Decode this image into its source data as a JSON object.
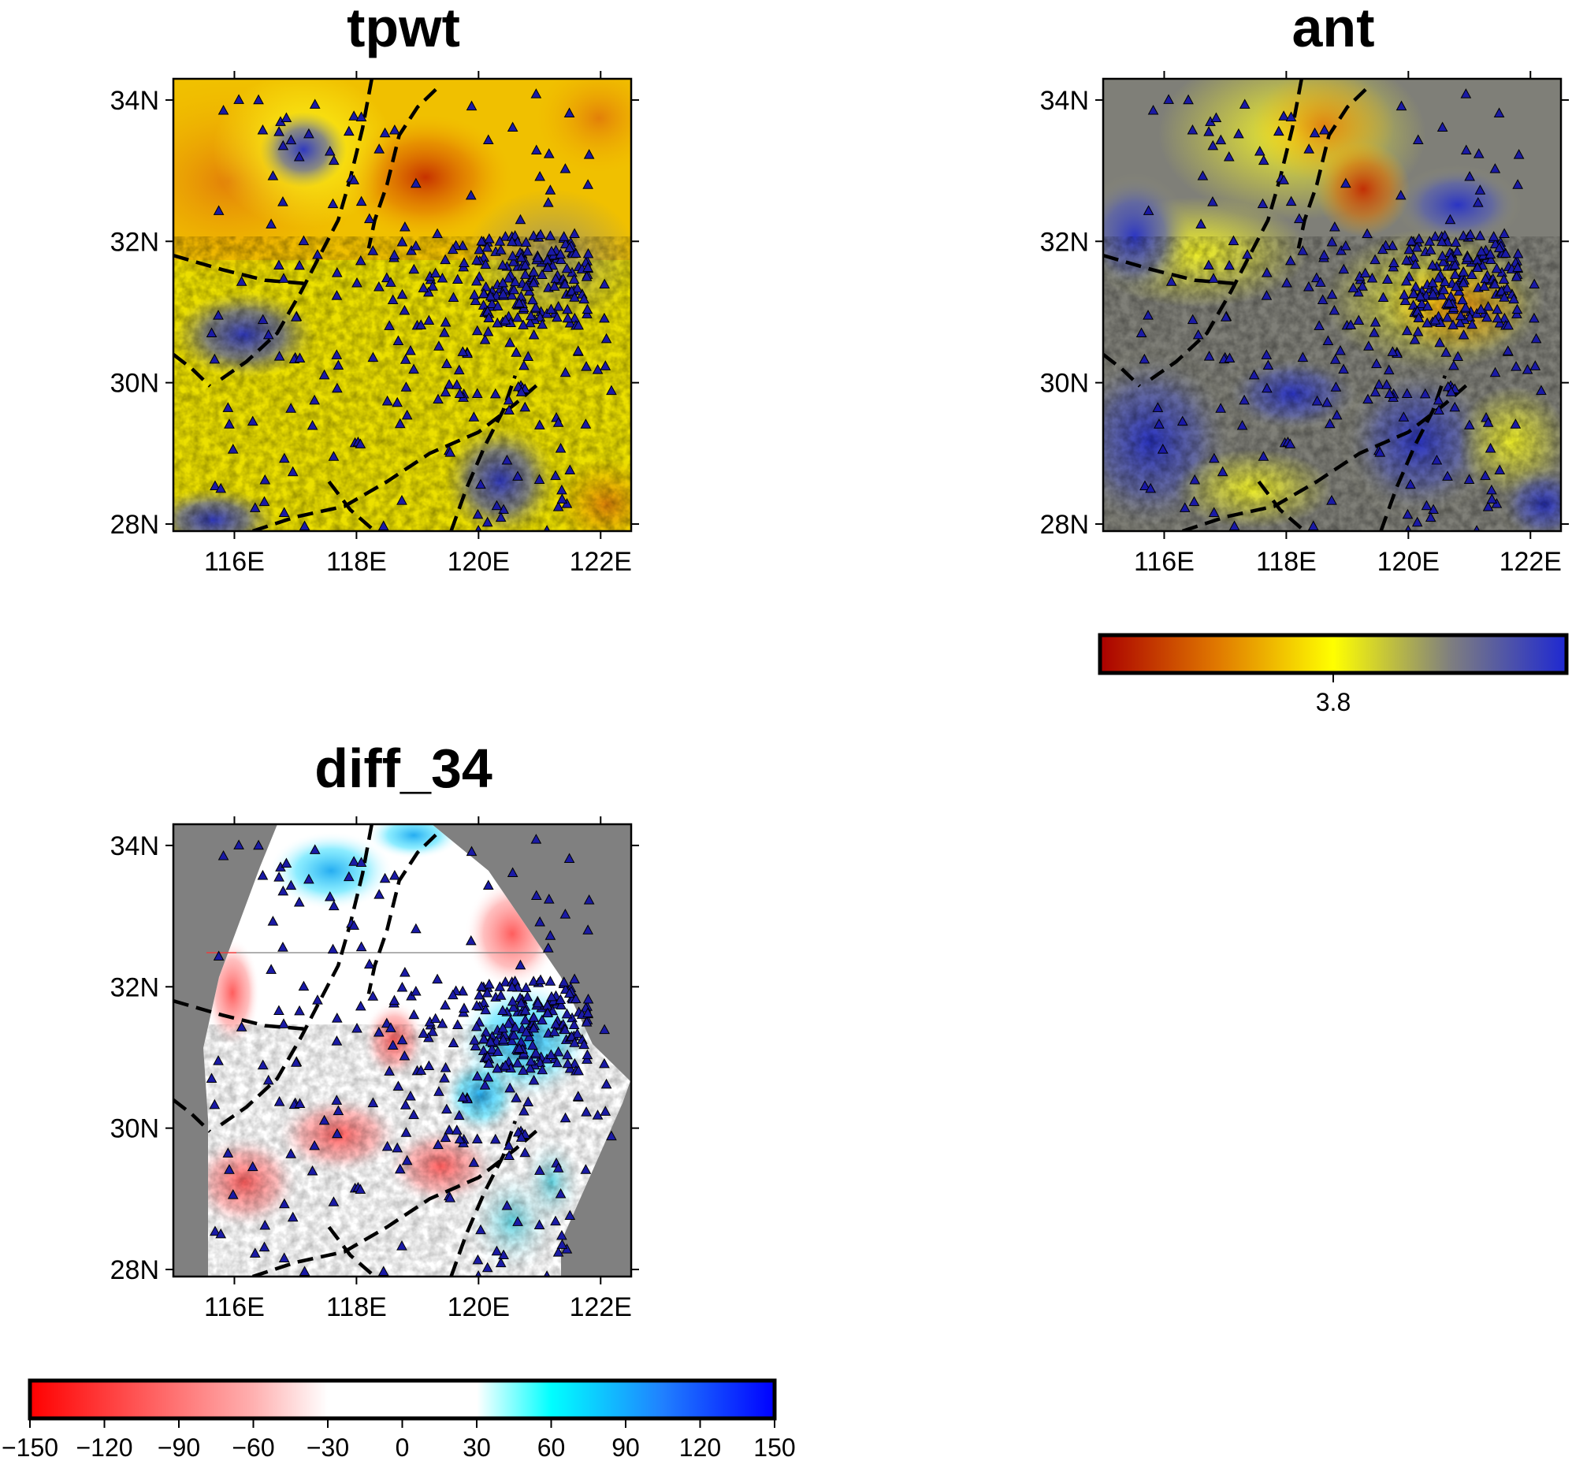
{
  "panels": [
    {
      "id": "tpwt",
      "title": "tpwt",
      "x_ticks": [
        "116E",
        "118E",
        "120E",
        "122E"
      ],
      "y_ticks": [
        "34N",
        "32N",
        "30N",
        "28N"
      ]
    },
    {
      "id": "ant",
      "title": "ant",
      "x_ticks": [
        "116E",
        "118E",
        "120E",
        "122E"
      ],
      "y_ticks": [
        "34N",
        "32N",
        "30N",
        "28N"
      ]
    },
    {
      "id": "diff_34",
      "title": "diff_34",
      "x_ticks": [
        "116E",
        "118E",
        "120E",
        "122E"
      ],
      "y_ticks": [
        "34N",
        "32N",
        "30N",
        "28N"
      ]
    }
  ],
  "colorbar_velocity": {
    "tick_labels": [
      "3.8"
    ],
    "colors": [
      "#aa0000",
      "#e07800",
      "#ffff00",
      "#7f7f7f",
      "#1e28d2"
    ]
  },
  "colorbar_diff": {
    "tick_labels": [
      "−150",
      "−120",
      "−90",
      "−60",
      "−30",
      "0",
      "30",
      "60",
      "90",
      "120",
      "150"
    ],
    "colors": [
      "#ff0000",
      "#ffffff",
      "#00ffff",
      "#0000ff"
    ]
  },
  "map_extent": {
    "lon": [
      115,
      122.5
    ],
    "lat": [
      27.9,
      34.3
    ]
  },
  "colors": {
    "station_fill": "#1a1aa6",
    "mask_gray": "#808080",
    "fault_line": "#000000"
  }
}
